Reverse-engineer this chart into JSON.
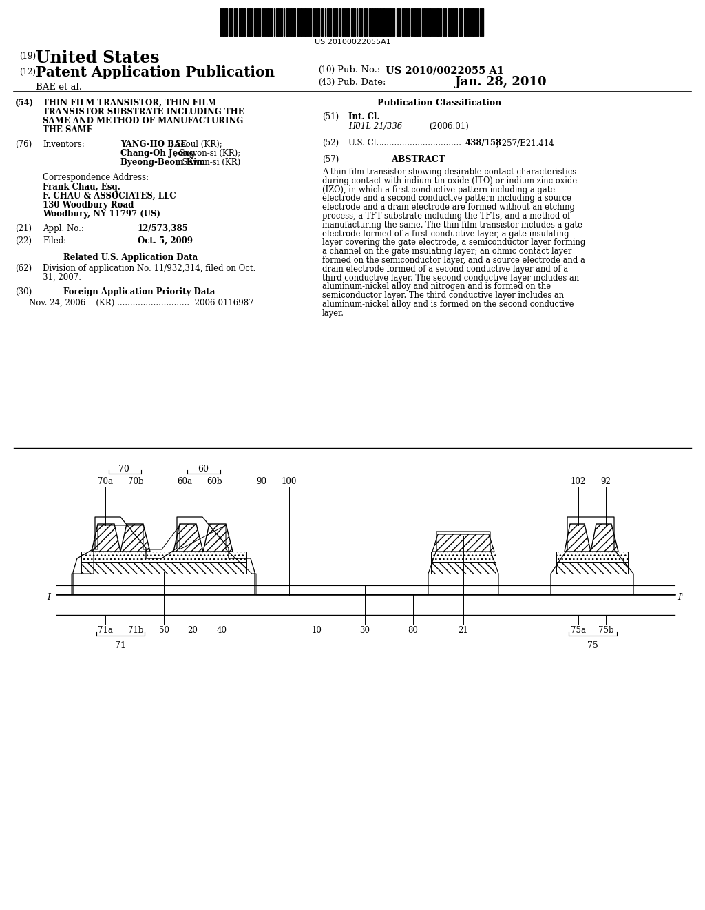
{
  "background_color": "#ffffff",
  "barcode_text": "US 20100022055A1",
  "header": {
    "country_num": "(19)",
    "country": "United States",
    "type_num": "(12)",
    "type": "Patent Application Publication",
    "pub_num_label_num": "(10)",
    "pub_num_label": "Pub. No.:",
    "pub_num": "US 2010/0022055 A1",
    "assignee": "BAE et al.",
    "date_label_num": "(43)",
    "date_label": "Pub. Date:",
    "date": "Jan. 28, 2010"
  },
  "left_col": {
    "title_num": "(54)",
    "title_line1": "THIN FILM TRANSISTOR, THIN FILM",
    "title_line2": "TRANSISTOR SUBSTRATE INCLUDING THE",
    "title_line3": "SAME AND METHOD OF MANUFACTURING",
    "title_line4": "THE SAME",
    "inventors_num": "(76)",
    "inventors_label": "Inventors:",
    "inv1_bold": "YANG-HO BAE",
    "inv1_rest": ", Seoul (KR);",
    "inv2_bold": "Chang-Oh Jeong",
    "inv2_rest": ", Suwon-si (KR);",
    "inv3_bold": "Byeong-Beom Kim",
    "inv3_rest": ", Suwon-si (KR)",
    "corr_label": "Correspondence Address:",
    "corr1_bold": "Frank Chau, Esq.",
    "corr2_bold": "F. CHAU & ASSOCIATES, LLC",
    "corr3": "130 Woodbury Road",
    "corr4": "Woodbury, NY 11797 (US)",
    "appl_num": "(21)",
    "appl_label": "Appl. No.:",
    "appl_val": "12/573,385",
    "filed_num": "(22)",
    "filed_label": "Filed:",
    "filed_val": "Oct. 5, 2009",
    "related_header": "Related U.S. Application Data",
    "related_num": "(62)",
    "related_text1": "Division of application No. 11/932,314, filed on Oct.",
    "related_text2": "31, 2007.",
    "foreign_num": "(30)",
    "foreign_header": "Foreign Application Priority Data",
    "foreign_line": "Nov. 24, 2006    (KR) ............................  2006-0116987"
  },
  "right_col": {
    "pub_class_header": "Publication Classification",
    "int_cl_num": "(51)",
    "int_cl_label": "Int. Cl.",
    "int_cl_val": "H01L 21/336",
    "int_cl_date": "(2006.01)",
    "us_cl_num": "(52)",
    "us_cl_label": "U.S. Cl.",
    "us_cl_line": "U.S. Cl. .................................  438/158; 257/E21.414",
    "abstract_num": "(57)",
    "abstract_header": "ABSTRACT",
    "abstract_text": "A thin film transistor showing desirable contact characteristics during contact with indium tin oxide (ITO) or indium zinc oxide (IZO), in which a first conductive pattern including a gate electrode and a second conductive pattern including a source electrode and a drain electrode are formed without an etching process, a TFT substrate including the TFTs, and a method of manufacturing the same. The thin film transistor includes a gate electrode formed of a first conductive layer, a gate insulating layer covering the gate electrode, a semiconductor layer forming a channel on the gate insulating layer; an ohmic contact layer formed on the semiconductor layer, and a source electrode and a drain electrode formed of a second conductive layer and of a third conductive layer. The second conductive layer includes an aluminum-nickel alloy and nitrogen and is formed on the semiconductor layer. The third conductive layer includes an aluminum-nickel alloy and is formed on the second conductive layer."
  }
}
